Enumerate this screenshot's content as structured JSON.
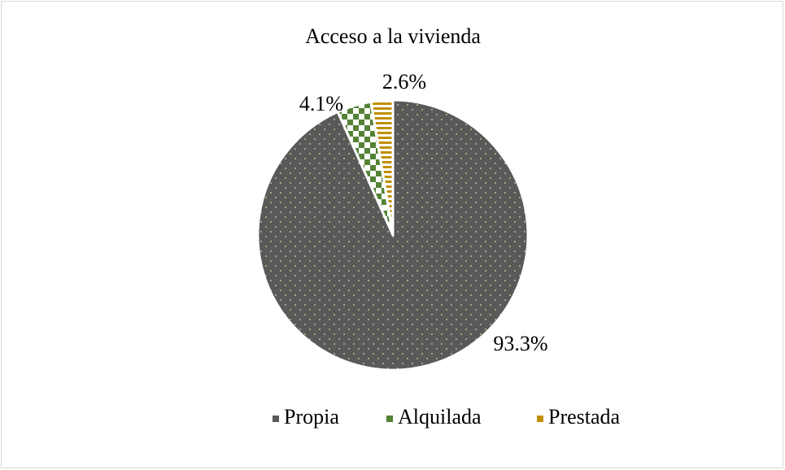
{
  "chart_data": {
    "type": "pie",
    "title": "Acceso a la vivienda",
    "categories": [
      "Propia",
      "Alquilada",
      "Prestada"
    ],
    "values": [
      93.3,
      4.1,
      2.6
    ],
    "value_labels": [
      "93.3%",
      "4.1%",
      "2.6%"
    ],
    "colors": [
      "#595959",
      "#548235",
      "#bf9000"
    ],
    "legend": "bottom"
  }
}
